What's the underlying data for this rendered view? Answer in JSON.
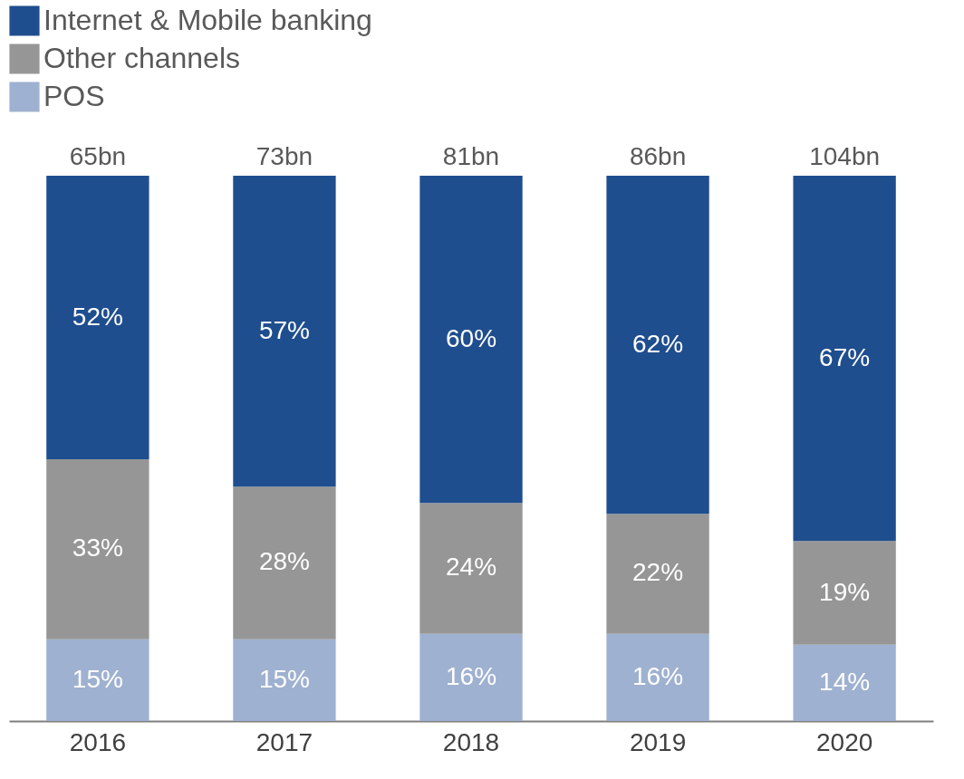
{
  "chart_data": {
    "type": "bar",
    "stacked": true,
    "categories": [
      "2016",
      "2017",
      "2018",
      "2019",
      "2020"
    ],
    "series": [
      {
        "name": "POS",
        "color": "#9fb1d0",
        "values": [
          15,
          15,
          16,
          16,
          14
        ],
        "value_labels": [
          "15%",
          "15%",
          "16%",
          "16%",
          "14%"
        ]
      },
      {
        "name": "Other channels",
        "color": "#969696",
        "values": [
          33,
          28,
          24,
          22,
          19
        ],
        "value_labels": [
          "33%",
          "28%",
          "24%",
          "22%",
          "19%"
        ]
      },
      {
        "name": "Internet & Mobile banking",
        "color": "#1f4e8f",
        "values": [
          52,
          57,
          60,
          62,
          67
        ],
        "value_labels": [
          "52%",
          "57%",
          "60%",
          "62%",
          "67%"
        ]
      }
    ],
    "annotations": [
      {
        "text": "65bn",
        "x": "2016",
        "y": 100
      },
      {
        "text": "73bn",
        "x": "2017",
        "y": 100
      },
      {
        "text": "81bn",
        "x": "2018",
        "y": 100
      },
      {
        "text": "86bn",
        "x": "2019",
        "y": 100
      },
      {
        "text": "104bn",
        "x": "2020",
        "y": 100
      }
    ],
    "legend": "top left"
  }
}
